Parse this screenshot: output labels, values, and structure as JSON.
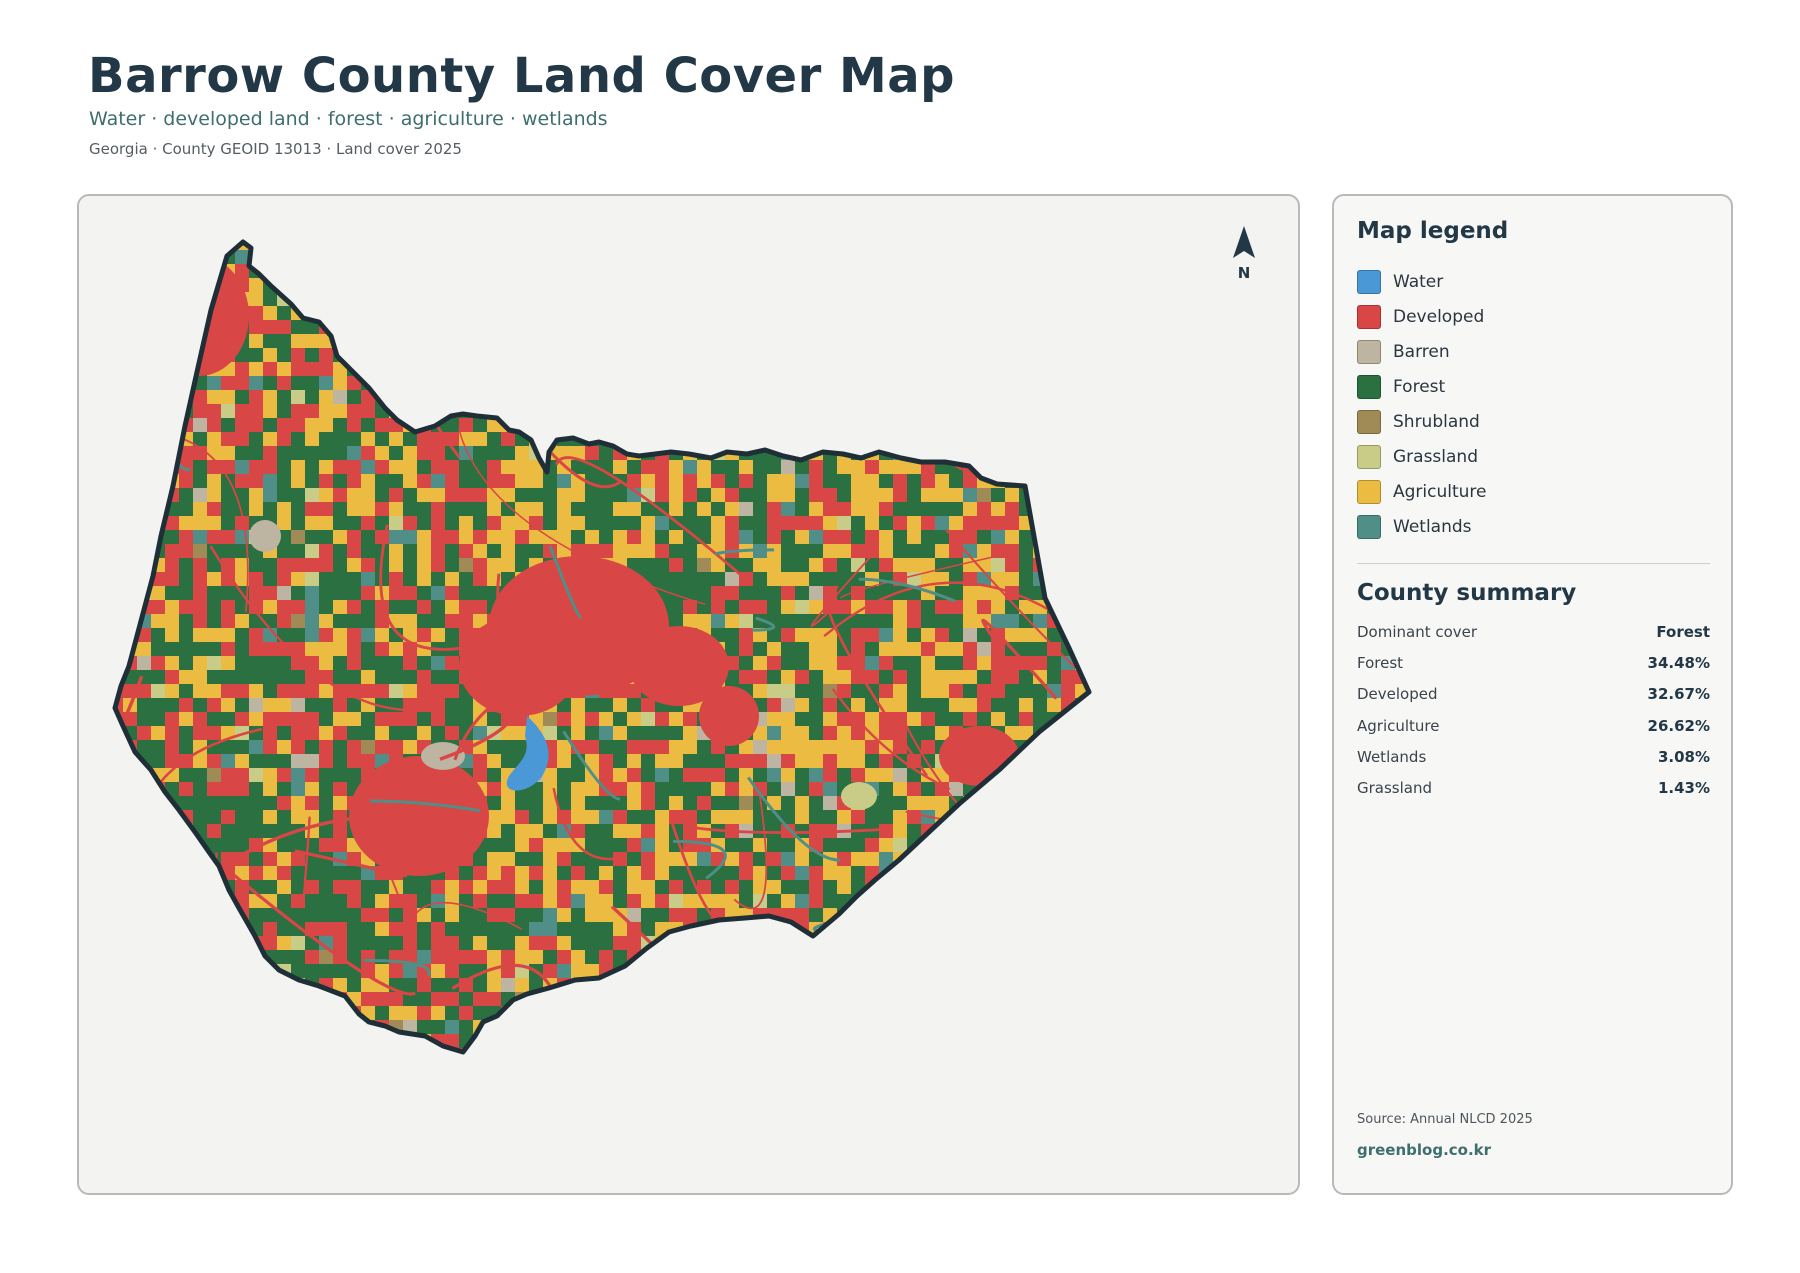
{
  "header": {
    "title": "Barrow County Land Cover Map",
    "subtitle": "Water · developed land · forest · agriculture · wetlands",
    "meta": "Georgia · County GEOID 13013 · Land cover 2025"
  },
  "map": {
    "north_label": "N",
    "compass_icon": "north-arrow-icon"
  },
  "legend": {
    "title": "Map legend",
    "items": [
      {
        "label": "Water",
        "color": "#4a98d6"
      },
      {
        "label": "Developed",
        "color": "#d94646"
      },
      {
        "label": "Barren",
        "color": "#bdb4a2"
      },
      {
        "label": "Forest",
        "color": "#2a7040"
      },
      {
        "label": "Shrubland",
        "color": "#a08a55"
      },
      {
        "label": "Grassland",
        "color": "#c8cc86"
      },
      {
        "label": "Agriculture",
        "color": "#ebbb42"
      },
      {
        "label": "Wetlands",
        "color": "#4f8f88"
      }
    ]
  },
  "summary": {
    "title": "County summary",
    "rows": [
      {
        "label": "Dominant cover",
        "value": "Forest"
      },
      {
        "label": "Forest",
        "value": "34.48%"
      },
      {
        "label": "Developed",
        "value": "32.67%"
      },
      {
        "label": "Agriculture",
        "value": "26.62%"
      },
      {
        "label": "Wetlands",
        "value": "3.08%"
      },
      {
        "label": "Grassland",
        "value": "1.43%"
      }
    ]
  },
  "footer": {
    "source": "Source: Annual NLCD 2025",
    "site": "greenblog.co.kr"
  }
}
